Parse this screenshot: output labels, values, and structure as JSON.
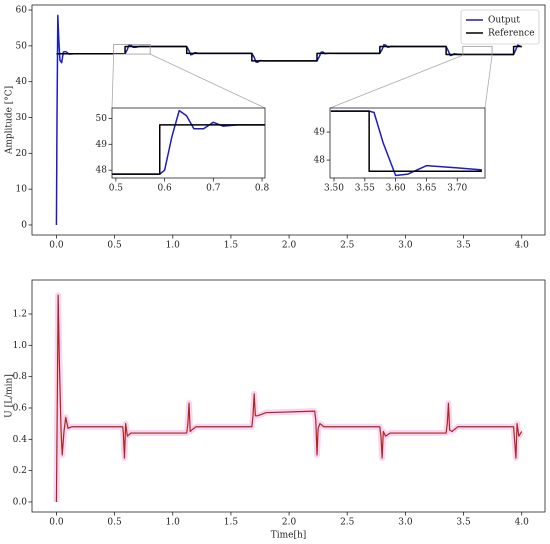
{
  "chart_data": [
    {
      "type": "line",
      "ylabel": "Amplitude [°C]",
      "legend": "upper right",
      "xlim": [
        -0.21,
        4.2
      ],
      "ylim": [
        -2.8,
        61.4
      ],
      "xticks": [
        {
          "value": 0,
          "label": "0.0"
        },
        0.5,
        {
          "value": 1,
          "label": "1.0"
        },
        1.5,
        {
          "value": 2,
          "label": "2.0"
        },
        2.5,
        {
          "value": 3,
          "label": "3.0"
        },
        3.5,
        {
          "value": 4,
          "label": "4.0"
        }
      ],
      "yticks": [
        0,
        10,
        20,
        30,
        40,
        50,
        60
      ],
      "x": [
        0,
        0.005,
        0.012,
        0.02,
        0.03,
        0.045,
        0.06,
        0.08,
        0.11,
        0.15,
        0.59,
        0.59,
        0.61,
        0.625,
        0.64,
        0.66,
        0.68,
        0.72,
        0.8,
        1.12,
        1.12,
        1.14,
        1.155,
        1.17,
        1.19,
        1.22,
        1.3,
        1.68,
        1.68,
        1.7,
        1.715,
        1.73,
        1.75,
        1.78,
        1.86,
        2.24,
        2.24,
        2.26,
        2.275,
        2.29,
        2.31,
        2.34,
        2.42,
        2.78,
        2.78,
        2.8,
        2.815,
        2.83,
        2.85,
        2.88,
        2.96,
        3.35,
        3.35,
        3.37,
        3.385,
        3.4,
        3.42,
        3.45,
        3.53,
        3.93,
        3.93,
        3.95,
        3.965,
        3.98,
        4.0
      ],
      "series": [
        {
          "name": "Output",
          "color": "#1c1cc4",
          "values": [
            0,
            30,
            58.5,
            52,
            46,
            45.3,
            48.3,
            48.4,
            47.7,
            47.8,
            47.8,
            47.8,
            49.0,
            50.3,
            50.2,
            49.6,
            49.6,
            49.85,
            49.8,
            49.8,
            49.8,
            48.6,
            47.5,
            47.6,
            48.1,
            47.9,
            47.9,
            47.9,
            47.9,
            46.8,
            45.5,
            45.4,
            45.9,
            45.8,
            45.8,
            45.8,
            45.8,
            47.0,
            48.2,
            48.3,
            47.8,
            47.95,
            47.9,
            47.9,
            47.9,
            49.0,
            50.3,
            50.2,
            49.6,
            49.85,
            49.8,
            49.8,
            49.8,
            48.5,
            47.3,
            47.4,
            47.8,
            47.65,
            47.6,
            47.6,
            47.6,
            49.0,
            50.2,
            50.0,
            49.7
          ]
        },
        {
          "name": "Reference",
          "color": "#000000",
          "values": [
            47.8,
            47.8,
            47.8,
            47.8,
            47.8,
            47.8,
            47.8,
            47.8,
            47.8,
            47.8,
            47.8,
            49.8,
            49.8,
            49.8,
            49.8,
            49.8,
            49.8,
            49.8,
            49.8,
            49.8,
            47.9,
            47.9,
            47.9,
            47.9,
            47.9,
            47.9,
            47.9,
            47.9,
            45.8,
            45.8,
            45.8,
            45.8,
            45.8,
            45.8,
            45.8,
            45.8,
            47.9,
            47.9,
            47.9,
            47.9,
            47.9,
            47.9,
            47.9,
            47.9,
            49.8,
            49.8,
            49.8,
            49.8,
            49.8,
            49.8,
            49.8,
            49.8,
            47.6,
            47.6,
            47.6,
            47.6,
            47.6,
            47.6,
            47.6,
            47.6,
            49.8,
            49.8,
            49.8,
            49.8,
            49.8
          ]
        }
      ]
    },
    {
      "type": "line",
      "xlim": [
        0.492,
        0.806
      ],
      "ylim": [
        47.7,
        50.4
      ],
      "xticks": [
        0.5,
        0.6,
        0.7,
        0.8
      ],
      "yticks": [
        48,
        49,
        50
      ],
      "x": [
        0.492,
        0.59,
        0.59,
        0.6,
        0.615,
        0.63,
        0.645,
        0.66,
        0.68,
        0.7,
        0.72,
        0.75,
        0.806
      ],
      "series": [
        {
          "color": "#1c1cc4",
          "values": [
            47.85,
            47.85,
            47.85,
            48.0,
            49.3,
            50.3,
            50.1,
            49.6,
            49.6,
            49.85,
            49.7,
            49.75,
            49.75
          ]
        },
        {
          "color": "#000000",
          "values": [
            47.85,
            47.85,
            49.75,
            49.75,
            49.75,
            49.75,
            49.75,
            49.75,
            49.75,
            49.75,
            49.75,
            49.75,
            49.75
          ]
        }
      ]
    },
    {
      "type": "line",
      "xlim": [
        3.4935,
        3.745
      ],
      "ylim": [
        47.36,
        49.86
      ],
      "xticks": [
        {
          "value": 3.5,
          "label": "3.50"
        },
        3.55,
        {
          "value": 3.6,
          "label": "3.60"
        },
        3.65,
        {
          "value": 3.7,
          "label": "3.70"
        }
      ],
      "yticks": [
        48,
        49
      ],
      "x": [
        3.495,
        3.557,
        3.557,
        3.565,
        3.58,
        3.6,
        3.62,
        3.65,
        3.7,
        3.74
      ],
      "series": [
        {
          "color": "#1c1cc4",
          "values": [
            49.75,
            49.75,
            49.75,
            49.7,
            48.6,
            47.45,
            47.5,
            47.8,
            47.72,
            47.65
          ]
        },
        {
          "color": "#000000",
          "values": [
            49.75,
            49.75,
            47.6,
            47.6,
            47.6,
            47.6,
            47.6,
            47.6,
            47.6,
            47.6
          ]
        }
      ]
    },
    {
      "type": "line",
      "xlabel": "Time[h]",
      "ylabel": "U [L/min]",
      "xlim": [
        -0.21,
        4.2
      ],
      "ylim": [
        -0.064,
        1.417
      ],
      "xticks": [
        {
          "value": 0,
          "label": "0.0"
        },
        0.5,
        {
          "value": 1,
          "label": "1.0"
        },
        1.5,
        {
          "value": 2,
          "label": "2.0"
        },
        2.5,
        {
          "value": 3,
          "label": "3.0"
        },
        3.5,
        {
          "value": 4,
          "label": "4.0"
        }
      ],
      "yticks": [
        {
          "value": 0,
          "label": "0.0"
        },
        0.2,
        0.4,
        0.6,
        0.8,
        {
          "value": 1,
          "label": "1.0"
        },
        1.2
      ],
      "x": [
        0,
        0.008,
        0.015,
        0.025,
        0.04,
        0.05,
        0.065,
        0.08,
        0.1,
        0.13,
        0.57,
        0.575,
        0.585,
        0.595,
        0.61,
        0.64,
        1.12,
        1.13,
        1.14,
        1.15,
        1.165,
        1.2,
        1.68,
        1.69,
        1.7,
        1.71,
        1.73,
        1.8,
        2.22,
        2.23,
        2.24,
        2.25,
        2.265,
        2.3,
        2.78,
        2.79,
        2.8,
        2.81,
        2.83,
        2.87,
        3.35,
        3.36,
        3.37,
        3.38,
        3.4,
        3.45,
        3.93,
        3.94,
        3.95,
        3.96,
        3.975,
        4.0
      ],
      "series": [
        {
          "color": "#b0241c",
          "values": [
            0,
            0.7,
            1.32,
            0.9,
            0.45,
            0.3,
            0.45,
            0.54,
            0.47,
            0.48,
            0.48,
            0.44,
            0.28,
            0.5,
            0.42,
            0.44,
            0.44,
            0.5,
            0.63,
            0.45,
            0.46,
            0.48,
            0.48,
            0.55,
            0.69,
            0.55,
            0.55,
            0.57,
            0.58,
            0.52,
            0.3,
            0.47,
            0.5,
            0.48,
            0.48,
            0.42,
            0.28,
            0.45,
            0.42,
            0.44,
            0.44,
            0.5,
            0.63,
            0.46,
            0.45,
            0.48,
            0.48,
            0.38,
            0.28,
            0.5,
            0.42,
            0.45
          ]
        }
      ]
    }
  ]
}
